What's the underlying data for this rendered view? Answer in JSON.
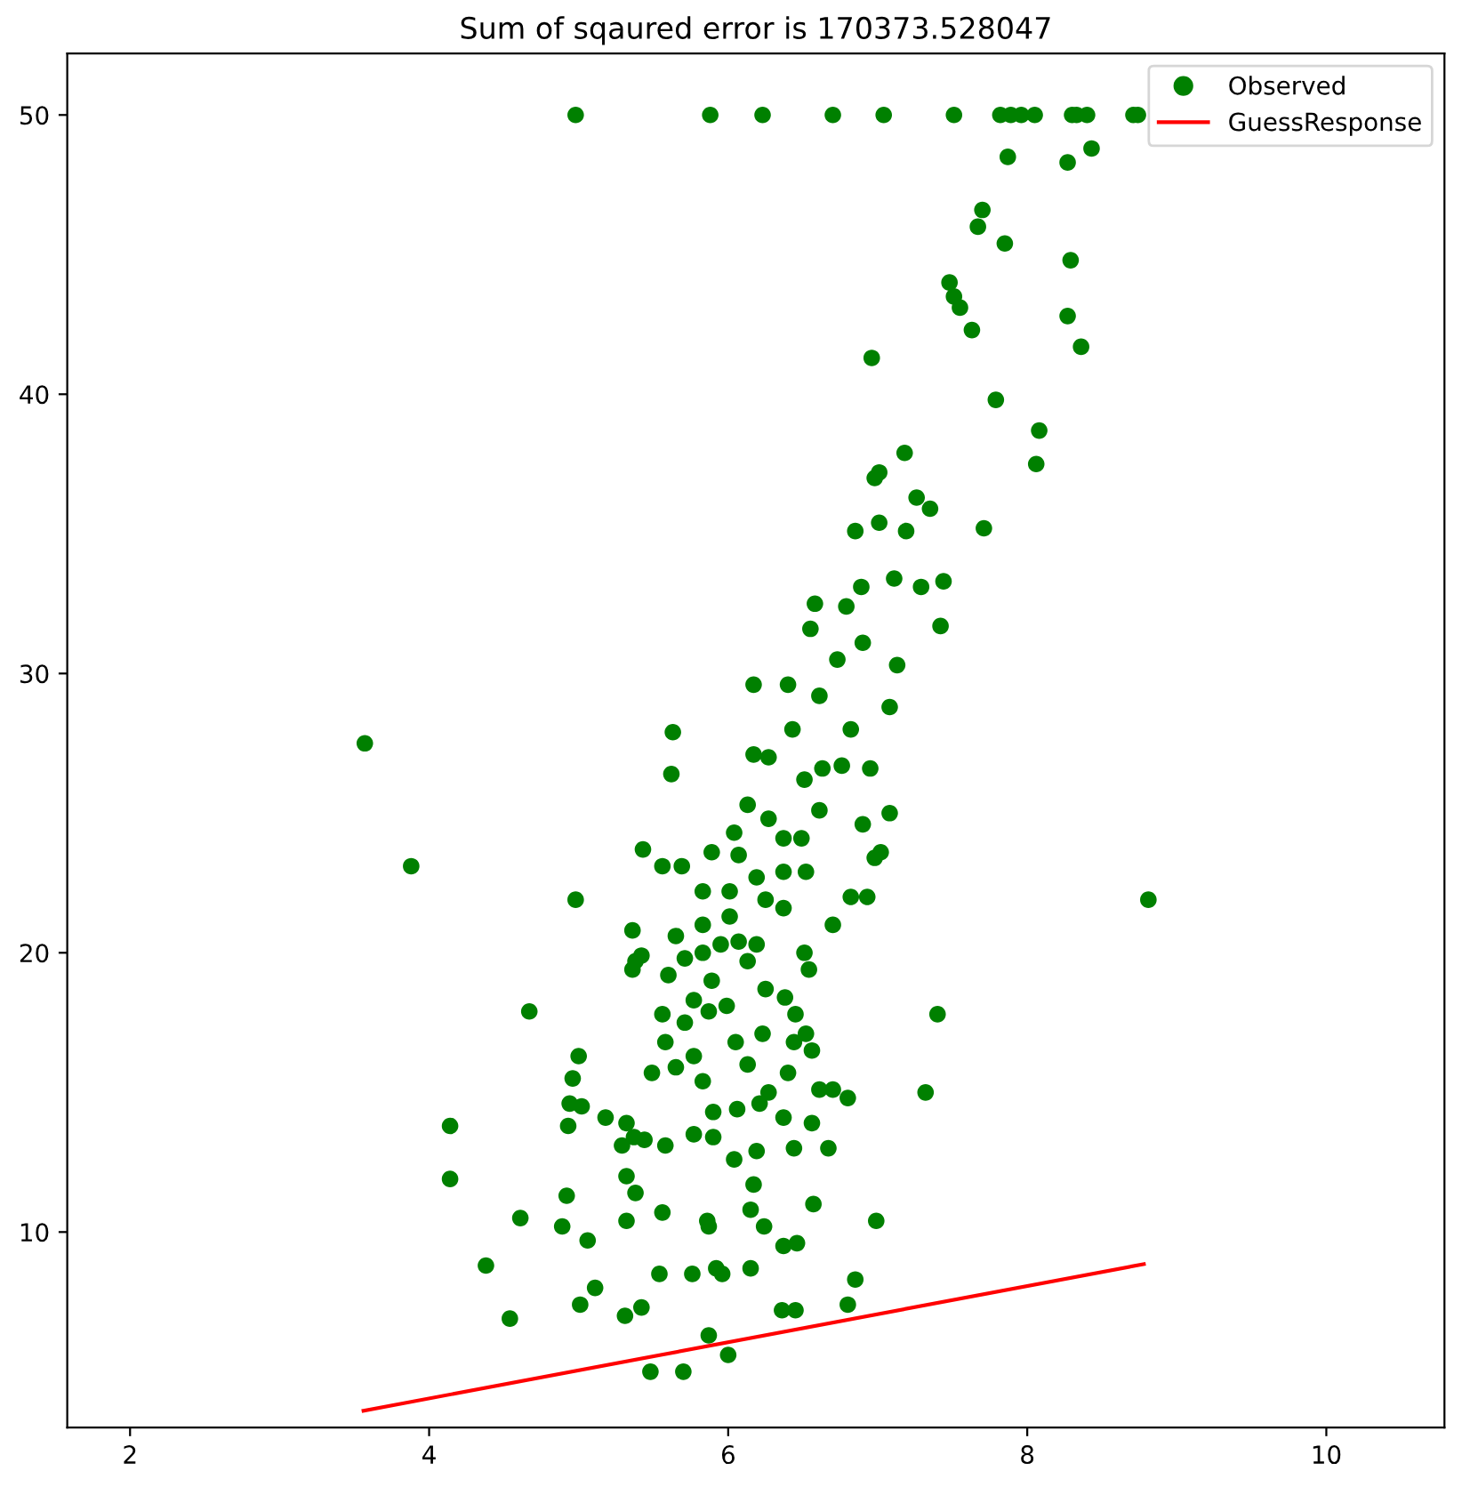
{
  "chart_data": {
    "type": "scatter",
    "title": "Sum of sqaured error is 170373.528047",
    "series": [
      {
        "name": "Observed",
        "color": "#008000",
        "marker": "circle",
        "x": [
          4.98,
          5.88,
          6.23,
          6.7,
          7.04,
          7.51,
          7.82,
          7.89,
          7.96,
          8.05,
          8.3,
          8.33,
          8.4,
          8.71,
          8.74,
          7.87,
          8.27,
          8.43,
          7.7,
          7.67,
          7.85,
          8.29,
          7.48,
          7.51,
          7.55,
          7.63,
          8.27,
          8.36,
          6.96,
          7.79,
          8.08,
          8.06,
          7.71,
          7.19,
          7.18,
          7.01,
          6.98,
          7.35,
          7.26,
          7.01,
          6.85,
          7.44,
          7.42,
          7.29,
          7.11,
          6.89,
          6.58,
          6.79,
          6.55,
          6.9,
          6.73,
          7.13,
          6.17,
          6.4,
          6.61,
          7.08,
          6.43,
          6.82,
          5.63,
          5.62,
          6.17,
          6.27,
          6.63,
          6.95,
          6.51,
          6.76,
          6.13,
          6.27,
          6.61,
          7.08,
          6.9,
          6.98,
          7.02,
          6.04,
          6.37,
          5.89,
          5.69,
          5.56,
          5.43,
          6.19,
          6.52,
          6.82,
          6.93,
          4.98,
          8.81,
          6.7,
          5.83,
          6.01,
          6.37,
          5.36,
          5.65,
          5.83,
          6.13,
          5.42,
          5.6,
          5.89,
          6.25,
          6.54,
          6.51,
          5.36,
          5.38,
          6.38,
          5.77,
          6.07,
          5.71,
          5.99,
          5.56,
          5.87,
          6.45,
          5.71,
          6.23,
          6.52,
          5.77,
          6.05,
          6.44,
          6.56,
          5.58,
          5.49,
          5.65,
          5.83,
          6.13,
          6.4,
          6.7,
          6.8,
          6.61,
          6.27,
          6.06,
          6.21,
          5.9,
          5.77,
          5.58,
          5.44,
          5.32,
          5.37,
          6.37,
          6.56,
          6.67,
          6.44,
          6.19,
          6.04,
          5.9,
          4.96,
          5.0,
          4.94,
          4.93,
          5.02,
          4.67,
          4.14,
          4.14,
          5.18,
          5.29,
          5.32,
          5.38,
          4.92,
          4.61,
          4.89,
          5.06,
          5.32,
          5.56,
          5.86,
          5.87,
          6.17,
          6.15,
          6.24,
          6.57,
          6.99,
          6.37,
          6.46,
          4.38,
          4.54,
          5.01,
          5.11,
          5.31,
          5.42,
          5.54,
          5.76,
          5.92,
          5.96,
          6.15,
          6.36,
          6.45,
          6.8,
          6.85,
          5.87,
          6.0,
          5.48,
          5.7,
          3.57,
          3.88,
          7.4,
          7.32,
          6.01,
          6.25,
          5.95,
          6.19,
          5.83,
          6.37,
          6.49,
          6.07
        ],
        "values": [
          50,
          50,
          50,
          50,
          50,
          50,
          50,
          50,
          50,
          50,
          50,
          50,
          50,
          50,
          50,
          48.5,
          48.3,
          48.8,
          46.6,
          46.0,
          45.4,
          44.8,
          44.0,
          43.5,
          43.1,
          42.3,
          42.8,
          41.7,
          41.3,
          39.8,
          38.7,
          37.5,
          35.2,
          35.1,
          37.9,
          37.2,
          37.0,
          35.9,
          36.3,
          35.4,
          35.1,
          33.3,
          31.7,
          33.1,
          33.4,
          33.1,
          32.5,
          32.4,
          31.6,
          31.1,
          30.5,
          30.3,
          29.6,
          29.6,
          29.2,
          28.8,
          28.0,
          28.0,
          27.9,
          26.4,
          27.1,
          27.0,
          26.6,
          26.6,
          26.2,
          26.7,
          25.3,
          24.8,
          25.1,
          25.0,
          24.6,
          23.4,
          23.6,
          24.3,
          24.1,
          23.6,
          23.1,
          23.1,
          23.7,
          22.7,
          22.9,
          22.0,
          22.0,
          21.9,
          21.9,
          21.0,
          22.2,
          21.3,
          21.6,
          20.8,
          20.6,
          20.0,
          19.7,
          19.9,
          19.2,
          19.0,
          18.7,
          19.4,
          20.0,
          19.4,
          19.7,
          18.4,
          18.3,
          20.4,
          19.8,
          18.1,
          17.8,
          17.9,
          17.8,
          17.5,
          17.1,
          17.1,
          16.3,
          16.8,
          16.8,
          16.5,
          16.8,
          15.7,
          15.9,
          15.4,
          16.0,
          15.7,
          15.1,
          14.8,
          15.1,
          15.0,
          14.4,
          14.6,
          14.3,
          13.5,
          13.1,
          13.3,
          13.9,
          13.4,
          14.1,
          13.9,
          13.0,
          13.0,
          12.9,
          12.6,
          13.4,
          15.5,
          16.3,
          14.6,
          13.8,
          14.5,
          17.9,
          13.8,
          11.9,
          14.1,
          13.1,
          12.0,
          11.4,
          11.3,
          10.5,
          10.2,
          9.7,
          10.4,
          10.7,
          10.4,
          10.2,
          11.7,
          10.8,
          10.2,
          11.0,
          10.4,
          9.5,
          9.6,
          8.8,
          6.9,
          7.4,
          8.0,
          7.0,
          7.3,
          8.5,
          8.5,
          8.7,
          8.5,
          8.7,
          7.2,
          7.2,
          7.4,
          8.3,
          6.3,
          5.6,
          5.0,
          5.0,
          27.5,
          23.1,
          17.8,
          15.0,
          22.2,
          21.9,
          20.3,
          20.3,
          21.0,
          22.9,
          24.1,
          23.5
        ]
      },
      {
        "name": "GuessResponse",
        "type": "line",
        "color": "#ff0000",
        "line_style": "solid",
        "x": [
          3.561,
          8.78
        ],
        "values": [
          3.6,
          8.85
        ]
      }
    ],
    "xlim": [
      1.58,
      10.79
    ],
    "ylim": [
      3.0,
      52.2
    ],
    "xticks": [
      2,
      4,
      6,
      8,
      10
    ],
    "yticks": [
      10,
      20,
      30,
      40,
      50
    ],
    "legend": "top right",
    "grid": false
  }
}
